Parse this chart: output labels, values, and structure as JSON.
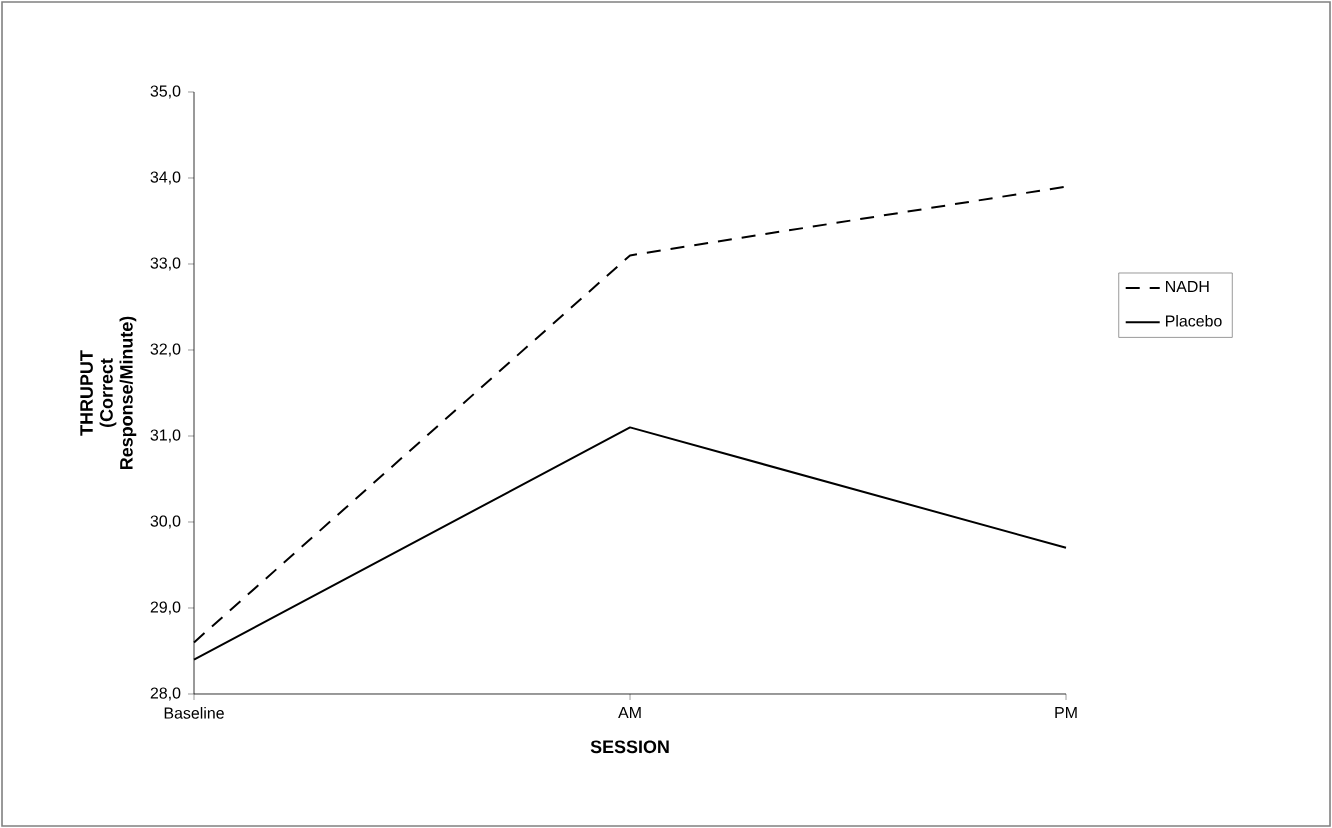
{
  "chart_data": {
    "type": "line",
    "xlabel": "SESSION",
    "ylabel": "THRUPUT (Correct Response/Minute)",
    "categories": [
      "Baseline",
      "AM",
      "PM"
    ],
    "series": [
      {
        "name": "NADH",
        "color": "#000000",
        "line_style": "dashed",
        "values": [
          28.6,
          33.1,
          33.9
        ]
      },
      {
        "name": "Placebo",
        "color": "#000000",
        "line_style": "solid",
        "values": [
          28.4,
          31.1,
          29.7
        ]
      }
    ],
    "ylim": [
      28,
      35
    ],
    "yticks": [
      {
        "value": 28,
        "label": "28,0"
      },
      {
        "value": 29,
        "label": "29,0"
      },
      {
        "value": 30,
        "label": "30,0"
      },
      {
        "value": 31,
        "label": "31,0"
      },
      {
        "value": 32,
        "label": "32,0"
      },
      {
        "value": 33,
        "label": "33,0"
      },
      {
        "value": 34,
        "label": "34,0"
      },
      {
        "value": 35,
        "label": "35,0"
      }
    ],
    "grid": false,
    "legend": "right",
    "marker": "none"
  }
}
